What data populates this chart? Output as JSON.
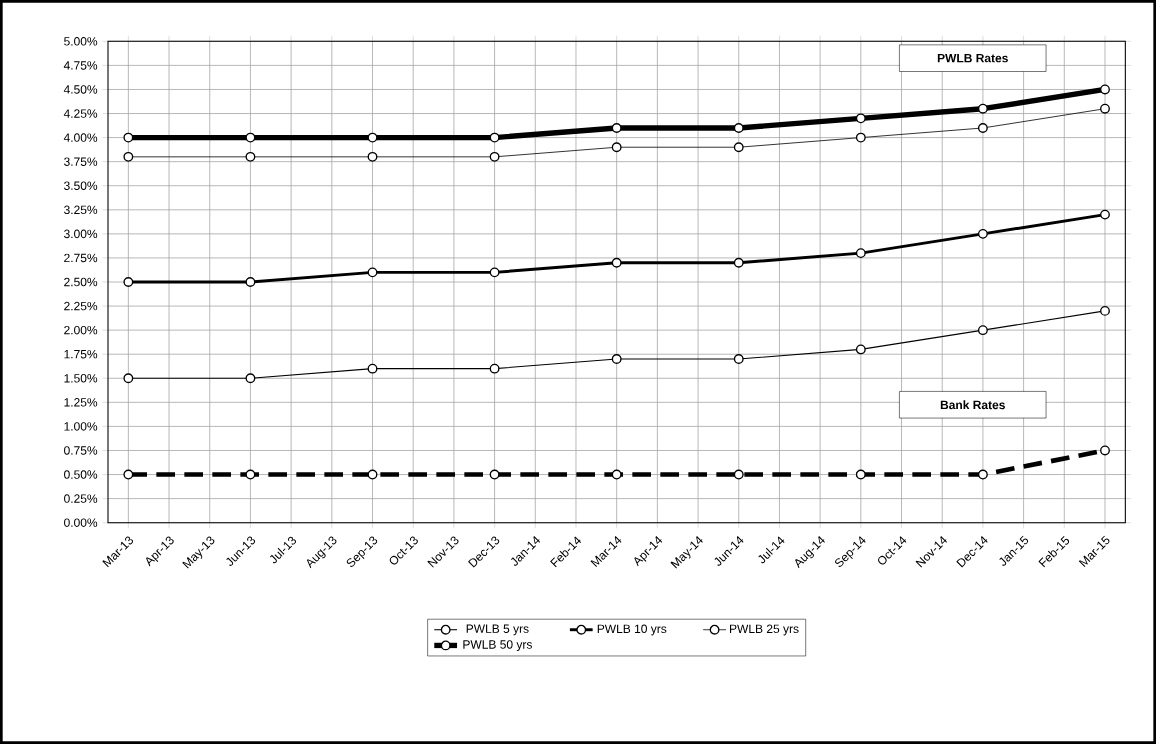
{
  "chart_data": {
    "type": "line",
    "categories": [
      "Mar-13",
      "Apr-13",
      "May-13",
      "Jun-13",
      "Jul-13",
      "Aug-13",
      "Sep-13",
      "Oct-13",
      "Nov-13",
      "Dec-13",
      "Jan-14",
      "Feb-14",
      "Mar-14",
      "Apr-14",
      "May-14",
      "Jun-14",
      "Jul-14",
      "Aug-14",
      "Sep-14",
      "Oct-14",
      "Nov-14",
      "Dec-14",
      "Jan-15",
      "Feb-15",
      "Mar-15"
    ],
    "series": [
      {
        "color": "#000000",
        "line_style": "dashed",
        "values": [
          0.5,
          null,
          null,
          0.5,
          null,
          null,
          0.5,
          null,
          null,
          0.5,
          null,
          null,
          0.5,
          null,
          null,
          0.5,
          null,
          null,
          0.5,
          null,
          null,
          0.5,
          null,
          null,
          0.75
        ]
      },
      {
        "name": "PWLB 5 yrs",
        "color": "#000000",
        "values": [
          1.5,
          null,
          null,
          1.5,
          null,
          null,
          1.6,
          null,
          null,
          1.6,
          null,
          null,
          1.7,
          null,
          null,
          1.7,
          null,
          null,
          1.8,
          null,
          null,
          2.0,
          null,
          null,
          2.2
        ]
      },
      {
        "name": "PWLB 10 yrs",
        "color": "#000000",
        "values": [
          2.5,
          null,
          null,
          2.5,
          null,
          null,
          2.6,
          null,
          null,
          2.6,
          null,
          null,
          2.7,
          null,
          null,
          2.7,
          null,
          null,
          2.8,
          null,
          null,
          3.0,
          null,
          null,
          3.2
        ]
      },
      {
        "name": "PWLB 25 yrs",
        "color": "#000000",
        "values": [
          3.8,
          null,
          null,
          3.8,
          null,
          null,
          3.8,
          null,
          null,
          3.8,
          null,
          null,
          3.9,
          null,
          null,
          3.9,
          null,
          null,
          4.0,
          null,
          null,
          4.1,
          null,
          null,
          4.3
        ]
      },
      {
        "name": "PWLB 50 yrs",
        "color": "#000000",
        "values": [
          4.0,
          null,
          null,
          4.0,
          null,
          null,
          4.0,
          null,
          null,
          4.0,
          null,
          null,
          4.1,
          null,
          null,
          4.1,
          null,
          null,
          4.2,
          null,
          null,
          4.3,
          null,
          null,
          4.5
        ]
      }
    ],
    "ylim": [
      0,
      5
    ],
    "yticks": [
      {
        "value": 0,
        "label": "0.00%"
      },
      {
        "value": 0.25,
        "label": "0.25%"
      },
      {
        "value": 0.5,
        "label": "0.50%"
      },
      {
        "value": 0.75,
        "label": "0.75%"
      },
      {
        "value": 1,
        "label": "1.00%"
      },
      {
        "value": 1.25,
        "label": "1.25%"
      },
      {
        "value": 1.5,
        "label": "1.50%"
      },
      {
        "value": 1.75,
        "label": "1.75%"
      },
      {
        "value": 2,
        "label": "2.00%"
      },
      {
        "value": 2.25,
        "label": "2.25%"
      },
      {
        "value": 2.5,
        "label": "2.50%"
      },
      {
        "value": 2.75,
        "label": "2.75%"
      },
      {
        "value": 3,
        "label": "3.00%"
      },
      {
        "value": 3.25,
        "label": "3.25%"
      },
      {
        "value": 3.5,
        "label": "3.50%"
      },
      {
        "value": 3.75,
        "label": "3.75%"
      },
      {
        "value": 4,
        "label": "4.00%"
      },
      {
        "value": 4.25,
        "label": "4.25%"
      },
      {
        "value": 4.5,
        "label": "4.50%"
      },
      {
        "value": 4.75,
        "label": "4.75%"
      },
      {
        "value": 5,
        "label": "5.00%"
      }
    ],
    "grid": true,
    "legend": "bottom",
    "marker": "circle",
    "annotations": [
      "PWLB Rates",
      "Bank Rates"
    ]
  }
}
